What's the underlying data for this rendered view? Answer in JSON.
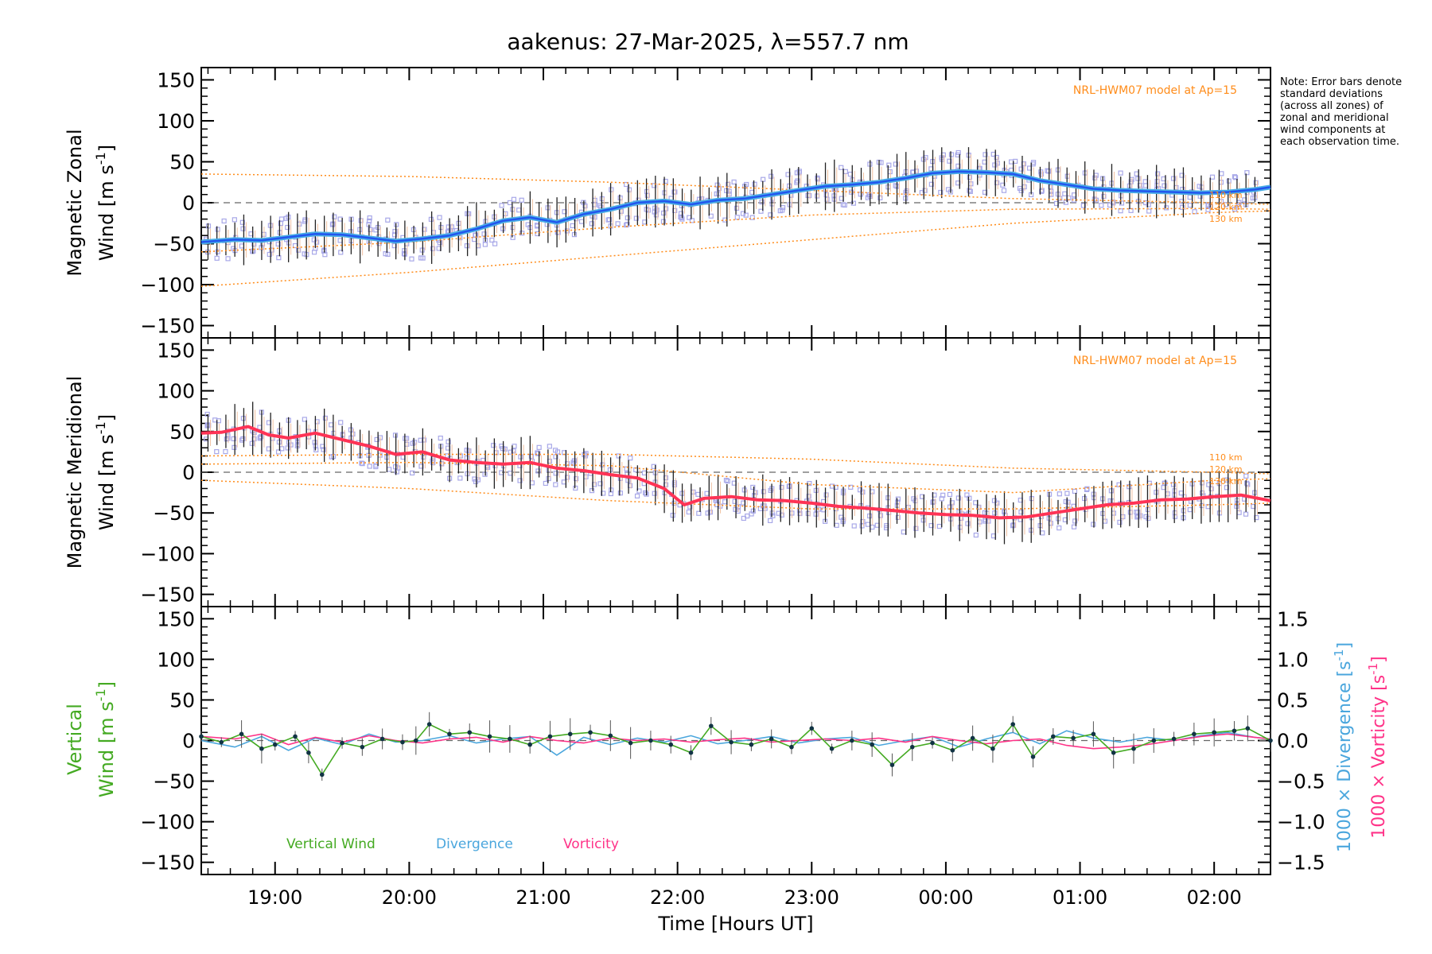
{
  "title": "aakenus: 27-Mar-2025, λ=557.7 nm",
  "note": "Note: Error bars denote standard deviations (across all zones) of zonal and meridional wind components at each observation time.",
  "xaxis": {
    "label": "Time [Hours UT]",
    "range_hours": [
      18.45,
      26.42
    ],
    "ticks": [
      {
        "value": 19,
        "label": "19:00"
      },
      {
        "value": 20,
        "label": "20:00"
      },
      {
        "value": 21,
        "label": "21:00"
      },
      {
        "value": 22,
        "label": "22:00"
      },
      {
        "value": 23,
        "label": "23:00"
      },
      {
        "value": 24,
        "label": "00:00"
      },
      {
        "value": 25,
        "label": "01:00"
      },
      {
        "value": 26,
        "label": "02:00"
      }
    ]
  },
  "colors": {
    "zonal": "#2255ee",
    "zonal_light": "#4aaee6",
    "meridional": "#ff3355",
    "model": "#ff8c1a",
    "scatter": "#a8a8e8",
    "vertical": "#44aa22",
    "divergence": "#4aa6dd",
    "vorticity": "#ff3388"
  },
  "chart_data": [
    {
      "type": "line",
      "name": "zonal",
      "ylabel_line1": "Magnetic Zonal",
      "ylabel_line2": "Wind",
      "units": "[m s-1]",
      "units_text": "[m s",
      "units_exp": "-1",
      "units_close": "]",
      "ylim": [
        -165,
        165
      ],
      "yticks": [
        -150,
        -100,
        -50,
        0,
        50,
        100,
        150
      ],
      "ytick_labels": [
        "−150",
        "−100",
        "−50",
        "0",
        "50",
        "100",
        "150"
      ],
      "model_label": "NRL-HWM07 model at Ap=15",
      "model_altitude_labels": [
        "110 km",
        "120 km",
        "130 km"
      ],
      "series": [
        {
          "name": "Zonal wind",
          "x": [
            18.45,
            18.7,
            18.9,
            19.1,
            19.3,
            19.5,
            19.7,
            19.9,
            20.1,
            20.3,
            20.5,
            20.7,
            20.9,
            21.1,
            21.3,
            21.5,
            21.7,
            21.9,
            22.1,
            22.3,
            22.5,
            22.7,
            22.9,
            23.1,
            23.3,
            23.5,
            23.7,
            23.9,
            24.1,
            24.3,
            24.5,
            24.7,
            24.9,
            25.1,
            25.3,
            25.5,
            25.7,
            25.9,
            26.1,
            26.3,
            26.42
          ],
          "y": [
            -48,
            -45,
            -46,
            -42,
            -38,
            -39,
            -43,
            -47,
            -44,
            -40,
            -32,
            -22,
            -18,
            -24,
            -14,
            -8,
            0,
            2,
            -2,
            3,
            5,
            10,
            15,
            20,
            22,
            25,
            30,
            36,
            38,
            37,
            35,
            27,
            22,
            17,
            15,
            14,
            13,
            12,
            13,
            16,
            19
          ]
        },
        {
          "name": "Model 110 km",
          "x": [
            18.45,
            20,
            21.5,
            23,
            24.5,
            26,
            26.42
          ],
          "y": [
            35,
            32,
            25,
            15,
            5,
            0,
            -2
          ]
        },
        {
          "name": "Model 120 km",
          "x": [
            18.45,
            20,
            21.5,
            23,
            24.5,
            26,
            26.42
          ],
          "y": [
            -60,
            -48,
            -30,
            -15,
            -8,
            -7,
            -8
          ]
        },
        {
          "name": "Model 130 km",
          "x": [
            18.45,
            20,
            21.5,
            23,
            24.5,
            26,
            26.42
          ],
          "y": [
            -102,
            -85,
            -65,
            -45,
            -25,
            -12,
            -10
          ]
        }
      ]
    },
    {
      "type": "line",
      "name": "meridional",
      "ylabel_line1": "Magnetic Meridional",
      "ylabel_line2": "Wind",
      "units": "[m s-1]",
      "units_text": "[m s",
      "units_exp": "-1",
      "units_close": "]",
      "ylim": [
        -165,
        165
      ],
      "yticks": [
        -150,
        -100,
        -50,
        0,
        50,
        100,
        150
      ],
      "ytick_labels": [
        "−150",
        "−100",
        "−50",
        "0",
        "50",
        "100",
        "150"
      ],
      "model_label": "NRL-HWM07 model at Ap=15",
      "model_altitude_labels": [
        "110 km",
        "120 km",
        "130 km"
      ],
      "series": [
        {
          "name": "Meridional wind",
          "x": [
            18.45,
            18.6,
            18.8,
            18.95,
            19.1,
            19.3,
            19.5,
            19.7,
            19.9,
            20.1,
            20.3,
            20.5,
            20.7,
            20.9,
            21.1,
            21.3,
            21.5,
            21.7,
            21.9,
            22.05,
            22.2,
            22.4,
            22.6,
            22.8,
            23.0,
            23.2,
            23.4,
            23.6,
            23.8,
            24.0,
            24.2,
            24.4,
            24.6,
            24.8,
            25.0,
            25.2,
            25.4,
            25.6,
            25.8,
            26.0,
            26.2,
            26.42
          ],
          "y": [
            48,
            49,
            56,
            46,
            42,
            48,
            40,
            32,
            22,
            25,
            15,
            12,
            10,
            12,
            5,
            2,
            -3,
            -7,
            -20,
            -40,
            -32,
            -30,
            -34,
            -35,
            -38,
            -42,
            -44,
            -47,
            -50,
            -52,
            -53,
            -56,
            -55,
            -50,
            -45,
            -40,
            -38,
            -34,
            -33,
            -30,
            -28,
            -35
          ]
        },
        {
          "name": "Model 110 km",
          "x": [
            18.45,
            20,
            21.5,
            23,
            24.5,
            26,
            26.42
          ],
          "y": [
            20,
            22,
            22,
            16,
            5,
            0,
            -2
          ]
        },
        {
          "name": "Model 120 km",
          "x": [
            18.45,
            20,
            21.5,
            23,
            24.5,
            26,
            26.42
          ],
          "y": [
            10,
            12,
            8,
            -15,
            -25,
            -10,
            -8
          ]
        },
        {
          "name": "Model 130 km",
          "x": [
            18.45,
            20,
            21.5,
            23,
            24.5,
            26,
            26.42
          ],
          "y": [
            -10,
            -20,
            -35,
            -45,
            -45,
            -40,
            -38
          ]
        }
      ]
    },
    {
      "type": "line",
      "name": "vertical",
      "ylabel_line1": "Vertical",
      "ylabel_line2": "Wind",
      "units": "[m s-1]",
      "units_text": "[m s",
      "units_exp": "-1",
      "units_close": "]",
      "ylim": [
        -165,
        165
      ],
      "yticks": [
        -150,
        -100,
        -50,
        0,
        50,
        100,
        150
      ],
      "ytick_labels": [
        "−150",
        "−100",
        "−50",
        "0",
        "50",
        "100",
        "150"
      ],
      "y2lim": [
        -1.65,
        1.65
      ],
      "y2ticks": [
        -1.5,
        -1.0,
        -0.5,
        0.0,
        0.5,
        1.0,
        1.5
      ],
      "y2tick_labels": [
        "−1.5",
        "−1.0",
        "−0.5",
        "0.0",
        "0.5",
        "1.0",
        "1.5"
      ],
      "y2label_div": "1000 × Divergence [s",
      "y2label_vort": "1000 × Vorticity [s",
      "y2label_exp": "-1",
      "y2label_close": "]",
      "legend": [
        "Vertical Wind",
        "Divergence",
        "Vorticity"
      ],
      "series": [
        {
          "name": "Vertical Wind",
          "x": [
            18.45,
            18.6,
            18.75,
            18.9,
            19.0,
            19.15,
            19.25,
            19.35,
            19.5,
            19.65,
            19.8,
            19.95,
            20.05,
            20.15,
            20.3,
            20.45,
            20.6,
            20.75,
            20.9,
            21.05,
            21.2,
            21.35,
            21.5,
            21.65,
            21.8,
            21.95,
            22.1,
            22.25,
            22.4,
            22.55,
            22.7,
            22.85,
            23.0,
            23.15,
            23.3,
            23.45,
            23.6,
            23.75,
            23.9,
            24.05,
            24.2,
            24.35,
            24.5,
            24.65,
            24.8,
            24.95,
            25.1,
            25.25,
            25.4,
            25.55,
            25.7,
            25.85,
            26.0,
            26.15,
            26.25,
            26.42
          ],
          "y": [
            5,
            -2,
            8,
            -10,
            -5,
            5,
            -15,
            -42,
            -3,
            -8,
            2,
            -2,
            0,
            20,
            8,
            10,
            5,
            2,
            -5,
            5,
            8,
            10,
            6,
            -3,
            0,
            -5,
            -15,
            18,
            -2,
            -5,
            2,
            -8,
            15,
            -10,
            0,
            -5,
            -30,
            -8,
            -3,
            -12,
            3,
            -10,
            20,
            -20,
            5,
            3,
            8,
            -15,
            -10,
            0,
            2,
            8,
            10,
            12,
            15,
            0
          ]
        },
        {
          "name": "Divergence",
          "x": [
            18.45,
            18.7,
            18.9,
            19.1,
            19.3,
            19.5,
            19.7,
            19.9,
            20.1,
            20.3,
            20.5,
            20.7,
            20.9,
            21.1,
            21.3,
            21.5,
            21.7,
            21.9,
            22.1,
            22.3,
            22.5,
            22.7,
            22.9,
            23.1,
            23.3,
            23.5,
            23.7,
            23.9,
            24.1,
            24.3,
            24.5,
            24.7,
            24.9,
            25.1,
            25.3,
            25.5,
            25.7,
            25.9,
            26.1,
            26.3,
            26.42
          ],
          "y": [
            0.0,
            -0.08,
            0.05,
            -0.12,
            0.03,
            -0.05,
            0.08,
            -0.02,
            0.0,
            0.06,
            -0.03,
            0.02,
            0.05,
            -0.18,
            0.04,
            -0.05,
            0.03,
            -0.02,
            0.06,
            -0.04,
            0.0,
            0.05,
            -0.03,
            0.02,
            0.04,
            -0.06,
            0.0,
            0.05,
            -0.08,
            0.02,
            0.1,
            -0.04,
            0.12,
            0.03,
            -0.02,
            0.04,
            0.0,
            0.06,
            0.1,
            0.04,
            0.02
          ]
        },
        {
          "name": "Vorticity",
          "x": [
            18.45,
            18.7,
            18.9,
            19.1,
            19.3,
            19.5,
            19.7,
            19.9,
            20.1,
            20.3,
            20.5,
            20.7,
            20.9,
            21.1,
            21.3,
            21.5,
            21.7,
            21.9,
            22.1,
            22.3,
            22.5,
            22.7,
            22.9,
            23.1,
            23.3,
            23.5,
            23.7,
            23.9,
            24.1,
            24.3,
            24.5,
            24.7,
            24.9,
            25.1,
            25.3,
            25.5,
            25.7,
            25.9,
            26.1,
            26.3,
            26.42
          ],
          "y": [
            0.05,
            0.02,
            0.08,
            -0.05,
            0.04,
            -0.02,
            0.06,
            0.0,
            -0.03,
            0.02,
            0.04,
            -0.02,
            0.05,
            0.0,
            -0.03,
            0.03,
            0.0,
            0.02,
            -0.02,
            0.01,
            0.03,
            -0.02,
            0.0,
            0.02,
            0.0,
            0.03,
            -0.02,
            0.05,
            0.0,
            -0.04,
            0.0,
            0.02,
            -0.06,
            -0.1,
            -0.08,
            -0.05,
            0.0,
            0.05,
            0.08,
            0.04,
            0.02
          ]
        }
      ]
    }
  ]
}
